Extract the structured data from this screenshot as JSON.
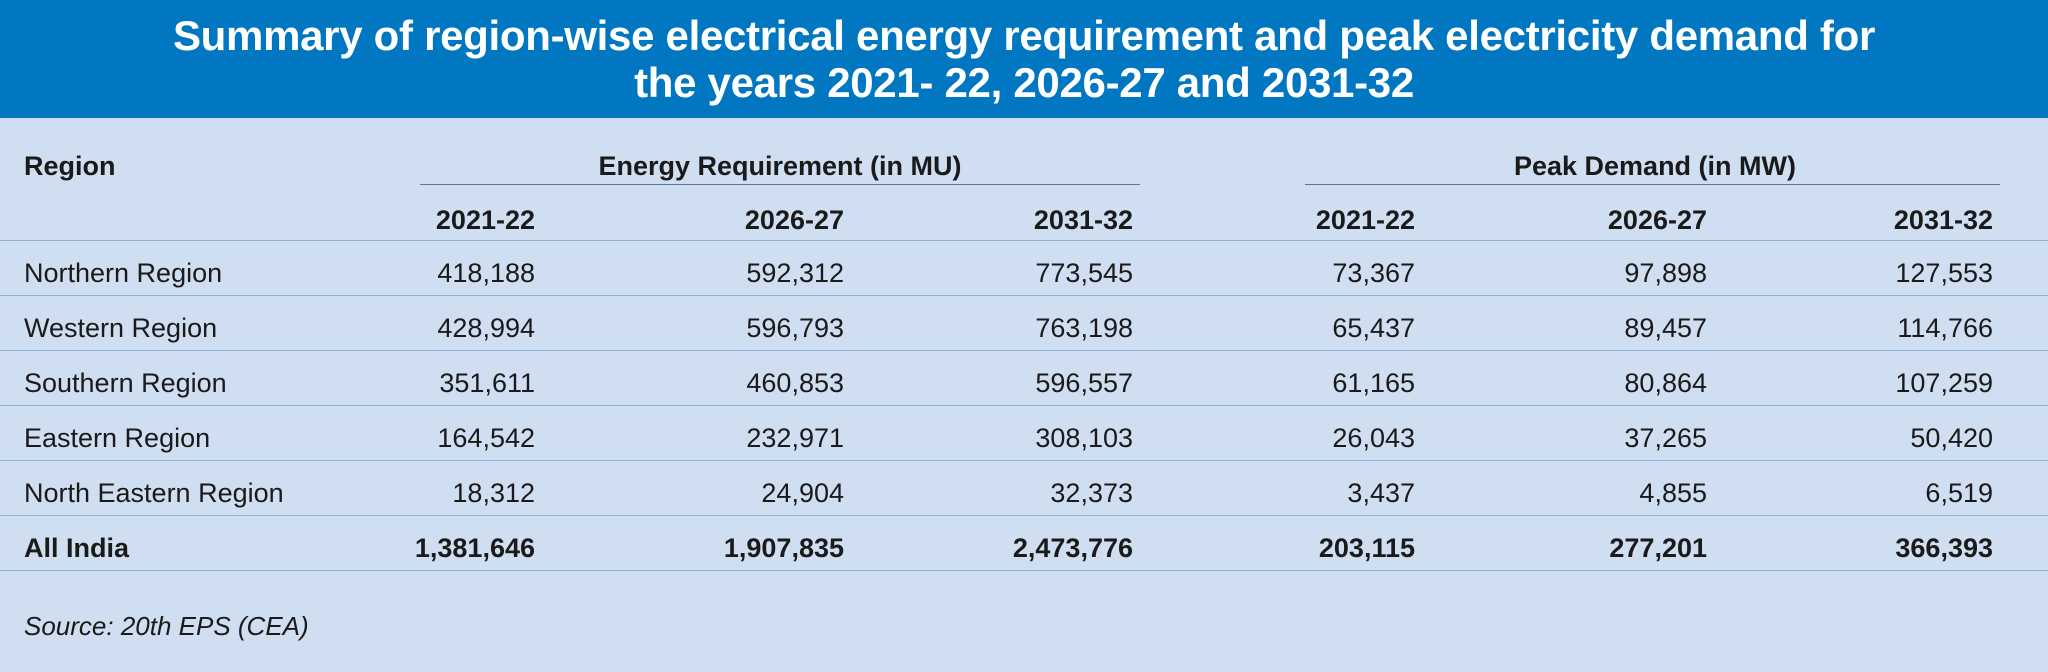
{
  "title": {
    "line1": "Summary of region-wise electrical energy requirement and peak electricity demand for",
    "line2": "the years 2021- 22, 2026-27 and 2031-32"
  },
  "table": {
    "region_header": "Region",
    "group_energy": "Energy Requirement (in MU)",
    "group_peak": "Peak Demand (in MW)",
    "years": [
      "2021-22",
      "2026-27",
      "2031-32",
      "2021-22",
      "2026-27",
      "2031-32"
    ],
    "rows": [
      {
        "region": "Northern Region",
        "values": [
          "418,188",
          "592,312",
          "773,545",
          "73,367",
          "97,898",
          "127,553"
        ]
      },
      {
        "region": "Western Region",
        "values": [
          "428,994",
          "596,793",
          "763,198",
          "65,437",
          "89,457",
          "114,766"
        ]
      },
      {
        "region": "Southern Region",
        "values": [
          "351,611",
          "460,853",
          "596,557",
          "61,165",
          "80,864",
          "107,259"
        ]
      },
      {
        "region": "Eastern Region",
        "values": [
          "164,542",
          "232,971",
          "308,103",
          "26,043",
          "37,265",
          "50,420"
        ]
      },
      {
        "region": "North Eastern Region",
        "values": [
          "18,312",
          "24,904",
          "32,373",
          "3,437",
          "4,855",
          "6,519"
        ]
      }
    ],
    "total": {
      "region": "All India",
      "values": [
        "1,381,646",
        "1,907,835",
        "2,473,776",
        "203,115",
        "277,201",
        "366,393"
      ]
    }
  },
  "source": "Source: 20th EPS (CEA)",
  "colors": {
    "banner": "#0077c0",
    "background": "#cfdef0",
    "row_rule": "#8fb3d6"
  }
}
